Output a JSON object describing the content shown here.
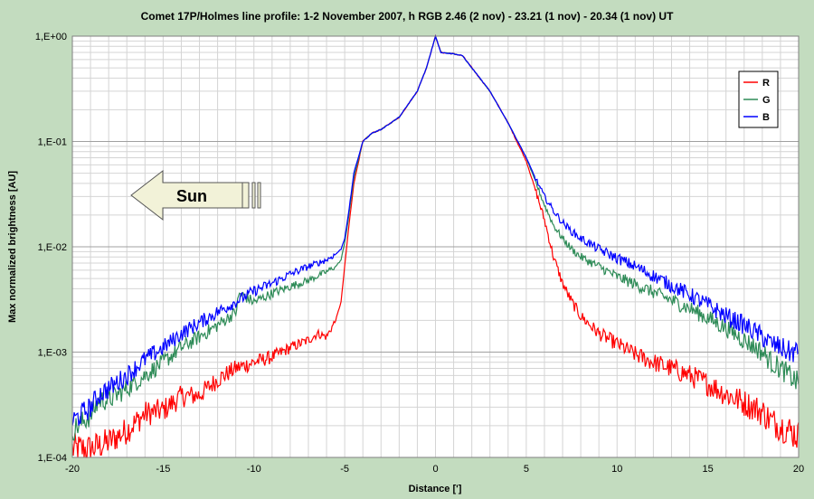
{
  "chart_data": {
    "type": "line",
    "title": "Comet 17P/Holmes line profile: 1-2 November 2007, h RGB 2.46 (2 nov) - 23.21 (1 nov) - 20.34 (1 nov) UT",
    "xlabel": "Distance [']",
    "ylabel": "Max normalized brightness [AU]",
    "xlim": [
      -20,
      20
    ],
    "ylim": [
      0.0001,
      1
    ],
    "yscale": "log",
    "grid": true,
    "legend_position": "top-right",
    "xticks": [
      -20,
      -15,
      -10,
      -5,
      0,
      5,
      10,
      15,
      20
    ],
    "xtick_labels": [
      "-20",
      "-15",
      "-10",
      "-5",
      "0",
      "5",
      "10",
      "15",
      "20"
    ],
    "yticks": [
      0.0001,
      0.001,
      0.01,
      0.1,
      1
    ],
    "ytick_labels": [
      "1,E-04",
      "1,E-03",
      "1,E-02",
      "1,E-01",
      "1,E+00"
    ],
    "annotation": {
      "text": "Sun",
      "shape": "arrow pointing left"
    },
    "series": [
      {
        "name": "R",
        "color": "#ff0000",
        "x": [
          -20,
          -19,
          -18.5,
          -18,
          -17,
          -16,
          -15,
          -14,
          -13,
          -12,
          -11,
          -10,
          -9,
          -8,
          -7,
          -6.5,
          -6,
          -5.5,
          -5.2,
          -5,
          -4.8,
          -4.5,
          -4,
          -3.5,
          -3,
          -2,
          -1,
          -0.5,
          0,
          0.3,
          1,
          1.5,
          2,
          3,
          4,
          5,
          5.5,
          6,
          6.5,
          7,
          7.5,
          8,
          9,
          10,
          11,
          12,
          13,
          14,
          15,
          16,
          17,
          18,
          18.5,
          19,
          19.5,
          20
        ],
        "y": [
          0.00012,
          0.00012,
          0.00013,
          0.00014,
          0.00018,
          0.00026,
          0.00028,
          0.00038,
          0.00039,
          0.00055,
          0.0007,
          0.0008,
          0.0009,
          0.0011,
          0.0013,
          0.0015,
          0.0014,
          0.002,
          0.003,
          0.0065,
          0.014,
          0.04,
          0.1,
          0.12,
          0.13,
          0.17,
          0.3,
          0.5,
          1.0,
          0.7,
          0.68,
          0.65,
          0.5,
          0.3,
          0.15,
          0.065,
          0.035,
          0.018,
          0.008,
          0.0045,
          0.003,
          0.0022,
          0.0015,
          0.0012,
          0.00095,
          0.0008,
          0.0007,
          0.0006,
          0.0005,
          0.0004,
          0.00033,
          0.00027,
          0.00022,
          0.0002,
          0.00018,
          0.00016
        ]
      },
      {
        "name": "G",
        "color": "#2e8b57",
        "x": [
          -20,
          -19,
          -18.5,
          -18,
          -17,
          -16,
          -15,
          -14,
          -13,
          -12,
          -11,
          -10.8,
          -10,
          -9,
          -8,
          -7,
          -6,
          -5.5,
          -5.2,
          -5,
          -4.8,
          -4.5,
          -4,
          -3.5,
          -3,
          -2,
          -1,
          -0.5,
          0,
          0.3,
          1,
          1.5,
          2,
          3,
          4,
          5,
          5.5,
          6,
          6.5,
          7,
          7.5,
          8,
          9,
          10,
          11,
          12,
          13,
          14,
          15,
          16,
          17,
          18,
          18.5,
          19,
          19.5,
          20
        ],
        "y": [
          0.00018,
          0.00025,
          0.00035,
          0.00035,
          0.00045,
          0.0006,
          0.0008,
          0.0011,
          0.0014,
          0.0018,
          0.0024,
          0.0036,
          0.003,
          0.0036,
          0.0042,
          0.0048,
          0.0058,
          0.0065,
          0.0075,
          0.011,
          0.018,
          0.045,
          0.1,
          0.12,
          0.13,
          0.17,
          0.3,
          0.5,
          1.0,
          0.7,
          0.68,
          0.65,
          0.5,
          0.3,
          0.15,
          0.07,
          0.042,
          0.025,
          0.016,
          0.012,
          0.0095,
          0.008,
          0.0065,
          0.0052,
          0.0044,
          0.0037,
          0.0031,
          0.0026,
          0.0021,
          0.0017,
          0.0013,
          0.001,
          0.0008,
          0.0007,
          0.0006,
          0.0005
        ]
      },
      {
        "name": "B",
        "color": "#0000ff",
        "x": [
          -20,
          -19,
          -18.5,
          -18,
          -17,
          -16,
          -15,
          -14,
          -13,
          -12,
          -11,
          -10,
          -9,
          -8,
          -7,
          -6,
          -5.5,
          -5.2,
          -5,
          -4.8,
          -4.5,
          -4,
          -3.5,
          -3,
          -2,
          -1,
          -0.5,
          0,
          0.3,
          1,
          1.5,
          2,
          3,
          4,
          5,
          5.5,
          6,
          6.5,
          7,
          7.5,
          8,
          9,
          10,
          11,
          12,
          13,
          14,
          15,
          16,
          17,
          18,
          18.5,
          19,
          19.5,
          20
        ],
        "y": [
          0.00022,
          0.0003,
          0.0004,
          0.00045,
          0.0006,
          0.00085,
          0.0011,
          0.0015,
          0.0019,
          0.0024,
          0.003,
          0.0038,
          0.0045,
          0.0055,
          0.0065,
          0.0075,
          0.0085,
          0.0095,
          0.012,
          0.02,
          0.05,
          0.1,
          0.12,
          0.13,
          0.17,
          0.3,
          0.5,
          1.0,
          0.7,
          0.68,
          0.65,
          0.5,
          0.3,
          0.15,
          0.07,
          0.045,
          0.03,
          0.022,
          0.017,
          0.014,
          0.012,
          0.0095,
          0.0078,
          0.0065,
          0.0053,
          0.0043,
          0.0035,
          0.0028,
          0.0022,
          0.0018,
          0.0014,
          0.0012,
          0.0011,
          0.001,
          0.001
        ]
      }
    ]
  }
}
